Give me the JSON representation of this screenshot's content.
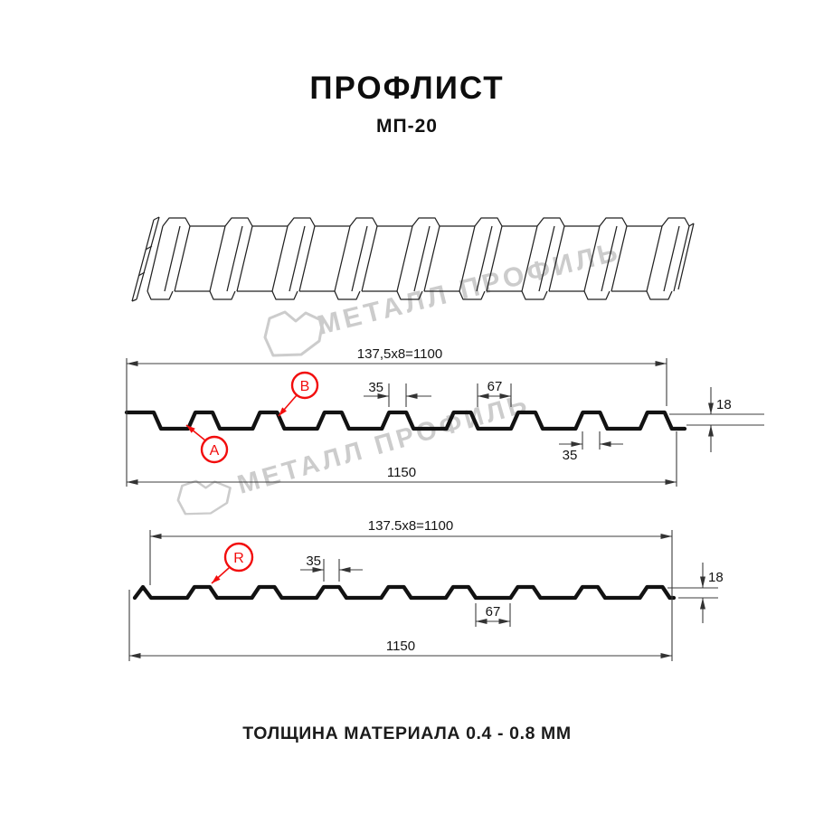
{
  "page": {
    "title": "ПРОФЛИСТ",
    "subtitle": "МП-20",
    "footer": "ТОЛЩИНА МАТЕРИАЛА 0.4 - 0.8 ММ"
  },
  "watermark": {
    "text": "МЕТАЛЛ ПРОФИЛЬ"
  },
  "profile_top_view": {
    "coverage_width": "137,5x8=1100",
    "rib_top_width": "35",
    "rib_spacing": "67",
    "profile_height": "18",
    "rib_bottom_width": "35",
    "overall_width": "1150",
    "point_a": "A",
    "point_b": "B"
  },
  "profile_bottom_view": {
    "coverage_width": "137.5x8=1100",
    "rib_top_width": "35",
    "rib_spacing": "67",
    "profile_height": "18",
    "overall_width": "1150",
    "point_r": "R"
  },
  "colors": {
    "accent_red": "#f20d0d",
    "line_color": "#141414",
    "watermark_gray": "#cccccc",
    "background": "#ffffff"
  }
}
